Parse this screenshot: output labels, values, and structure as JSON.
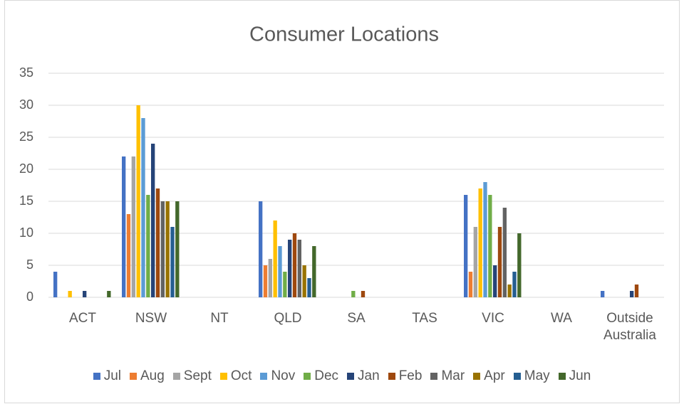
{
  "chart_data": {
    "type": "bar",
    "title": "Consumer Locations",
    "categories": [
      "ACT",
      "NSW",
      "NT",
      "QLD",
      "SA",
      "TAS",
      "VIC",
      "WA",
      "Outside Australia"
    ],
    "series": [
      {
        "name": "Jul",
        "color": "#4472c4",
        "values": [
          4,
          22,
          0,
          15,
          0,
          0,
          16,
          0,
          1
        ]
      },
      {
        "name": "Aug",
        "color": "#ed7d31",
        "values": [
          0,
          13,
          0,
          5,
          0,
          0,
          4,
          0,
          0
        ]
      },
      {
        "name": "Sept",
        "color": "#a5a5a5",
        "values": [
          0,
          22,
          0,
          6,
          0,
          0,
          11,
          0,
          0
        ]
      },
      {
        "name": "Oct",
        "color": "#ffc000",
        "values": [
          1,
          30,
          0,
          12,
          0,
          0,
          17,
          0,
          0
        ]
      },
      {
        "name": "Nov",
        "color": "#5b9bd5",
        "values": [
          0,
          28,
          0,
          8,
          0,
          0,
          18,
          0,
          0
        ]
      },
      {
        "name": "Dec",
        "color": "#70ad47",
        "values": [
          0,
          16,
          0,
          4,
          1,
          0,
          16,
          0,
          0
        ]
      },
      {
        "name": "Jan",
        "color": "#264478",
        "values": [
          1,
          24,
          0,
          9,
          0,
          0,
          5,
          0,
          1
        ]
      },
      {
        "name": "Feb",
        "color": "#9e480e",
        "values": [
          0,
          17,
          0,
          10,
          1,
          0,
          11,
          0,
          2
        ]
      },
      {
        "name": "Mar",
        "color": "#636363",
        "values": [
          0,
          15,
          0,
          9,
          0,
          0,
          14,
          0,
          0
        ]
      },
      {
        "name": "Apr",
        "color": "#997300",
        "values": [
          0,
          15,
          0,
          5,
          0,
          0,
          2,
          0,
          0
        ]
      },
      {
        "name": "May",
        "color": "#255e91",
        "values": [
          0,
          11,
          0,
          3,
          0,
          0,
          4,
          0,
          0
        ]
      },
      {
        "name": "Jun",
        "color": "#43682b",
        "values": [
          1,
          15,
          0,
          8,
          0,
          0,
          10,
          0,
          0
        ]
      }
    ],
    "ylim": [
      0,
      35
    ],
    "yticks": [
      0,
      5,
      10,
      15,
      20,
      25,
      30,
      35
    ],
    "grid": true,
    "legend": "bottom"
  }
}
